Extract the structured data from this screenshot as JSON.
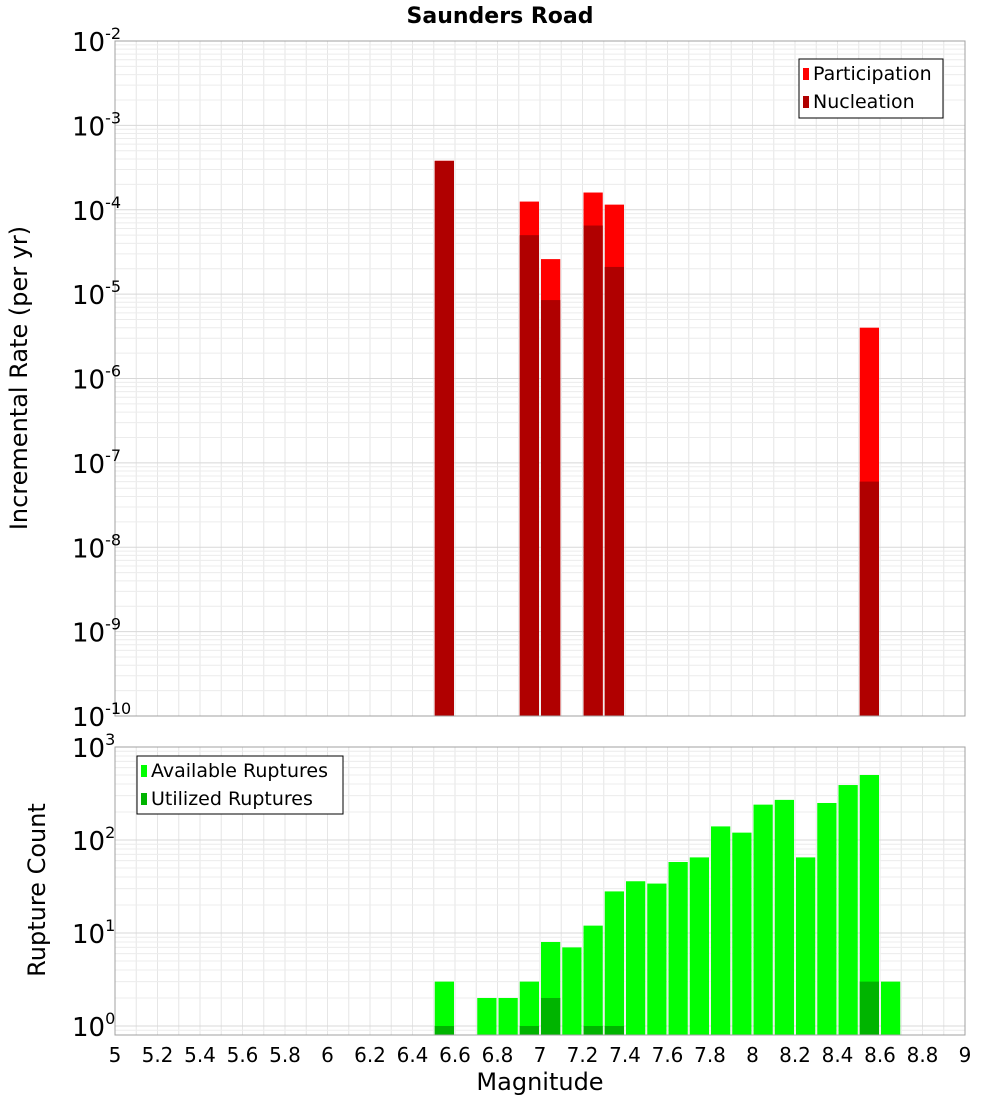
{
  "chart_data": [
    {
      "type": "bar",
      "title": "Saunders Road",
      "xlabel": "",
      "ylabel": "Incremental Rate (per yr)",
      "yscale": "log",
      "ylim": [
        1e-10,
        0.01
      ],
      "xlim": [
        5,
        9
      ],
      "bin_width": 0.1,
      "legend_position": "top-right",
      "grid": true,
      "x_bin_centers": [
        6.55,
        6.95,
        7.05,
        7.25,
        7.35,
        8.55
      ],
      "series": [
        {
          "name": "Participation",
          "color": "#ff0000",
          "values": [
            0.00038,
            0.000125,
            2.6e-05,
            0.00016,
            0.000115,
            4e-06
          ]
        },
        {
          "name": "Nucleation",
          "color": "#b00000",
          "values": [
            0.00038,
            5e-05,
            8.5e-06,
            6.5e-05,
            2.1e-05,
            6e-08
          ]
        }
      ]
    },
    {
      "type": "bar",
      "title": "",
      "xlabel": "Magnitude",
      "ylabel": "Rupture Count",
      "yscale": "log",
      "ylim": [
        0.8,
        1000
      ],
      "xlim": [
        5,
        9
      ],
      "bin_width": 0.1,
      "legend_position": "top-left",
      "grid": true,
      "x_bin_centers": [
        6.55,
        6.75,
        6.85,
        6.95,
        7.05,
        7.15,
        7.25,
        7.35,
        7.45,
        7.55,
        7.65,
        7.75,
        7.85,
        7.95,
        8.05,
        8.15,
        8.25,
        8.35,
        8.45,
        8.55,
        8.65
      ],
      "series": [
        {
          "name": "Available Ruptures",
          "color": "#00ff00",
          "values": [
            3,
            2,
            2,
            3,
            8,
            7,
            12,
            28,
            36,
            34,
            58,
            65,
            140,
            120,
            240,
            270,
            65,
            250,
            390,
            500,
            3
          ]
        },
        {
          "name": "Utilized Ruptures",
          "color": "#00b400",
          "values": [
            1,
            0,
            0,
            1,
            2,
            0,
            1,
            1,
            0,
            0,
            0,
            0,
            0,
            0,
            0,
            0,
            0,
            0,
            0,
            3,
            0
          ]
        }
      ]
    }
  ],
  "x_ticks": [
    "5",
    "5.2",
    "5.4",
    "5.6",
    "5.8",
    "6",
    "6.2",
    "6.4",
    "6.6",
    "6.8",
    "7",
    "7.2",
    "7.4",
    "7.6",
    "7.8",
    "8",
    "8.2",
    "8.4",
    "8.6",
    "8.8",
    "9"
  ],
  "top_y_ticks": [
    {
      "base": "10",
      "exp": "-2"
    },
    {
      "base": "10",
      "exp": "-3"
    },
    {
      "base": "10",
      "exp": "-4"
    },
    {
      "base": "10",
      "exp": "-5"
    },
    {
      "base": "10",
      "exp": "-6"
    },
    {
      "base": "10",
      "exp": "-7"
    },
    {
      "base": "10",
      "exp": "-8"
    },
    {
      "base": "10",
      "exp": "-9"
    },
    {
      "base": "10",
      "exp": "-10"
    }
  ],
  "bottom_y_ticks": [
    {
      "base": "10",
      "exp": "3"
    },
    {
      "base": "10",
      "exp": "2"
    },
    {
      "base": "10",
      "exp": "1"
    },
    {
      "base": "10",
      "exp": "0"
    }
  ]
}
